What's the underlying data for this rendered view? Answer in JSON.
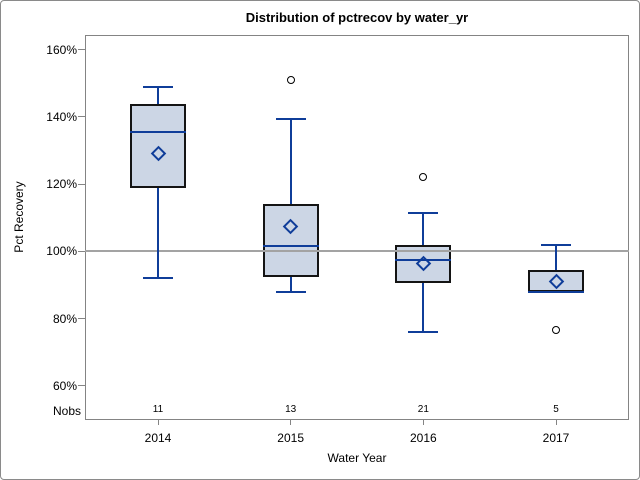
{
  "chart_data": {
    "type": "boxplot",
    "title": "Distribution of pctrecov by water_yr",
    "xlabel": "Water Year",
    "ylabel": "Pct Recovery",
    "nobs_label": "Nobs",
    "categories": [
      "2014",
      "2015",
      "2016",
      "2017"
    ],
    "nobs": [
      11,
      13,
      21,
      5
    ],
    "yticks": [
      60,
      80,
      100,
      120,
      140,
      160
    ],
    "ytick_suffix": "%",
    "ylim": [
      49.8,
      164.4
    ],
    "refline": 100,
    "grid": "off",
    "legend": "none",
    "series": [
      {
        "category": "2014",
        "whisker_low": 92,
        "q1": 119,
        "median": 135.5,
        "q3": 144,
        "whisker_high": 149,
        "mean": 129,
        "outliers": []
      },
      {
        "category": "2015",
        "whisker_low": 88,
        "q1": 92.5,
        "median": 101.5,
        "q3": 114,
        "whisker_high": 139.5,
        "mean": 107.5,
        "outliers": [
          151
        ]
      },
      {
        "category": "2016",
        "whisker_low": 76,
        "q1": 90.5,
        "median": 97.5,
        "q3": 102,
        "whisker_high": 111.5,
        "mean": 96.5,
        "outliers": [
          122
        ]
      },
      {
        "category": "2017",
        "whisker_low": 88,
        "q1": 88,
        "median": 88,
        "q3": 94.5,
        "whisker_high": 102,
        "mean": 91,
        "outliers": [
          76.5
        ]
      }
    ],
    "colors": {
      "box_fill": "#ccd6e5",
      "box_border": "#141414",
      "line_blue": "#0f3d99",
      "refline": "#a3a3a3",
      "frame": "#848484",
      "text": "#000000"
    }
  }
}
